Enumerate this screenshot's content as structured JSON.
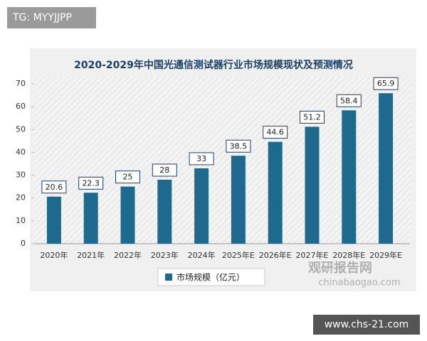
{
  "badges": {
    "top": "TG: MYYJJPP",
    "bottom": "www.chs-21.com"
  },
  "watermark": {
    "name": "观研报告网",
    "url": "chinabaogao.com"
  },
  "chart_data": {
    "type": "bar",
    "title": "2020-2029年中国光通信测试器行业市场规模现状及预测情况",
    "categories": [
      "2020年",
      "2021年",
      "2022年",
      "2023年",
      "2024年",
      "2025年E",
      "2026年E",
      "2027年E",
      "2028年E",
      "2029年E"
    ],
    "series": [
      {
        "name": "市场规模（亿元）",
        "color": "#1e6a8e",
        "values": [
          20.6,
          22.3,
          25,
          28,
          33,
          38.5,
          44.6,
          51.2,
          58.4,
          65.9
        ]
      }
    ],
    "ylim": [
      0,
      70
    ],
    "yticks": [
      0,
      10,
      20,
      30,
      40,
      50,
      60,
      70
    ],
    "legend": "bottom"
  }
}
